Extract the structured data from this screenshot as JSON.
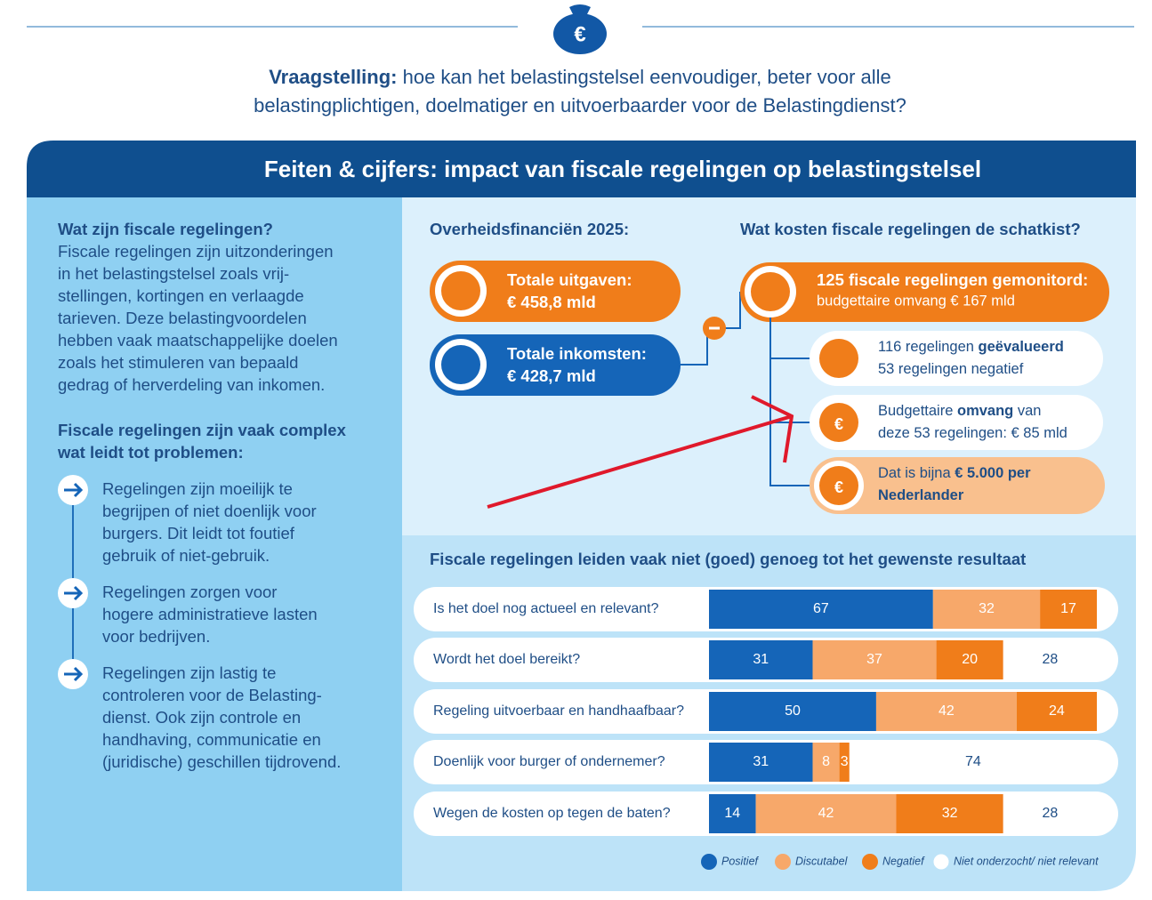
{
  "question": {
    "lines": [
      [
        {
          "text": "Vraagstelling:",
          "bold": true
        },
        {
          "text": " hoe kan het belastingstelsel eenvoudiger, beter voor alle"
        }
      ],
      [
        {
          "text": "belastingplichtigen, doelmatiger en uitvoerbaarder voor de Belastingdienst?"
        }
      ]
    ]
  },
  "banner": "Feiten & cijfers: impact van fiscale regelingen op belastingstelsel",
  "left": {
    "heading1": "Wat zijn fiscale regelingen?",
    "paragraph": [
      "Fiscale regelingen zijn uitzonderingen",
      "in het belastingstelsel zoals vrij-",
      "stellingen, kortingen en verlaagde",
      "tarieven. Deze belastingvoordelen",
      "hebben vaak maatschappelijke doelen",
      "zoals het stimuleren van bepaald",
      "gedrag of herverdeling van inkomen."
    ],
    "heading2": [
      "Fiscale regelingen zijn vaak complex",
      "wat leidt tot problemen:"
    ],
    "items": [
      [
        "Regelingen zijn moeilijk te",
        "begrijpen of niet doenlijk voor",
        "burgers. Dit leidt tot foutief",
        "gebruik of niet-gebruik."
      ],
      [
        "Regelingen zorgen voor",
        "hogere administratieve lasten",
        "voor bedrijven."
      ],
      [
        "Regelingen zijn lastig te",
        "controleren voor de Belasting-",
        "dienst. Ook zijn controle en",
        "handhaving, communicatie en",
        "(juridische) geschillen tijdrovend."
      ]
    ]
  },
  "finance": {
    "heading": "Overheidsfinanciën 2025:",
    "items": [
      {
        "label": "Totale uitgaven:",
        "value": "€ 458,8 mld"
      },
      {
        "label": "Totale inkomsten:",
        "value": "€ 428,7 mld"
      }
    ]
  },
  "costs": {
    "heading": "Wat kosten fiscale regelingen de schatkist?",
    "main": [
      "125 fiscale regelingen gemonitord:",
      "budgettaire omvang € 167 mld"
    ],
    "items": [
      [
        [
          {
            "text": "116 regelingen "
          },
          {
            "text": "geëvalueerd",
            "bold": true
          }
        ],
        [
          {
            "text": "53 regelingen negatief"
          }
        ]
      ],
      [
        [
          {
            "text": "Budgettaire "
          },
          {
            "text": "omvang",
            "bold": true
          },
          {
            "text": " van"
          }
        ],
        [
          {
            "text": "deze 53 regelingen: € 85 mld"
          }
        ]
      ],
      [
        [
          {
            "text": "Dat is bijna "
          },
          {
            "text": "€ 5.000 per",
            "bold": true
          }
        ],
        [
          {
            "text": "Nederlander",
            "bold": true
          }
        ]
      ]
    ]
  },
  "chart_data": {
    "type": "stacked-bar",
    "title": "Fiscale regelingen leiden vaak niet (goed) genoeg tot het gewenste resultaat",
    "categories": [
      "Is het doel nog actueel en relevant?",
      "Wordt het doel bereikt?",
      "Regeling uitvoerbaar en handhaafbaar?",
      "Doenlijk voor burger of ondernemer?",
      "Wegen de kosten op tegen de baten?"
    ],
    "xlim": [
      0,
      116
    ],
    "series": [
      {
        "name": "Positief",
        "color": "#1565b8",
        "values": [
          67,
          31,
          50,
          31,
          14
        ]
      },
      {
        "name": "Discutabel",
        "color": "#f7a86a",
        "values": [
          32,
          37,
          42,
          8,
          42
        ]
      },
      {
        "name": "Negatief",
        "color": "#f07d1a",
        "values": [
          17,
          20,
          24,
          3,
          32
        ]
      },
      {
        "name": "Niet onderzocht/ niet relevant",
        "color": "#ffffff",
        "values": [
          null,
          28,
          null,
          74,
          28
        ]
      }
    ]
  }
}
